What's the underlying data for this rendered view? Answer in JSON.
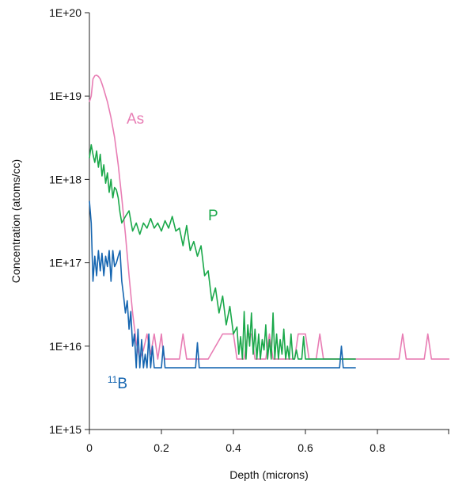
{
  "chart_data": {
    "type": "line",
    "title": "",
    "xlabel": "Depth (microns)",
    "ylabel": "Concentration (atoms/cc)",
    "xlim": [
      0,
      1.0
    ],
    "ylim": [
      1000000000000000.0,
      1e+20
    ],
    "y_scale": "log",
    "grid": false,
    "x_ticks": [
      0,
      0.2,
      0.4,
      0.6,
      0.8
    ],
    "x_tick_labels": [
      "0",
      "0.2",
      "0.4",
      "0.6",
      "0.8"
    ],
    "y_ticks": [
      1000000000000000.0,
      1e+16,
      1e+17,
      1e+18,
      1e+19,
      1e+20
    ],
    "y_tick_labels": [
      "1E+15",
      "1E+16",
      "1E+17",
      "1E+18",
      "1E+19",
      "1E+20"
    ],
    "series": [
      {
        "name": "As",
        "label": "As",
        "color": "#e87db4",
        "x": [
          0.0,
          0.005,
          0.01,
          0.015,
          0.02,
          0.025,
          0.03,
          0.035,
          0.04,
          0.05,
          0.06,
          0.07,
          0.08,
          0.09,
          0.1,
          0.11,
          0.12,
          0.13,
          0.14,
          0.15,
          0.16,
          0.17,
          0.18,
          0.19,
          0.2,
          0.205,
          0.21,
          0.22,
          0.25,
          0.26,
          0.27,
          0.29,
          0.3,
          0.31,
          0.33,
          0.37,
          0.38,
          0.4,
          0.41,
          0.43,
          0.44,
          0.45,
          0.46,
          0.49,
          0.5,
          0.51,
          0.53,
          0.57,
          0.58,
          0.6,
          0.61,
          0.62,
          0.63,
          0.64,
          0.65,
          0.7,
          0.8,
          0.85,
          0.86,
          0.87,
          0.88,
          0.9,
          0.92,
          0.93,
          0.94,
          0.95,
          1.0
        ],
        "y": [
          8.5e+18,
          1e+19,
          1.6e+19,
          1.75e+19,
          1.78e+19,
          1.72e+19,
          1.6e+19,
          1.4e+19,
          1.2e+19,
          8.5e+18,
          5.5e+18,
          3.2e+18,
          1.5e+18,
          6e+17,
          2.2e+17,
          7e+16,
          2.5e+16,
          1.1e+16,
          7000000000000000.0,
          9000000000000000.0,
          1.4e+16,
          8000000000000000.0,
          1.4e+16,
          7000000000000000.0,
          1.4e+16,
          8000000000000000.0,
          7000000000000000.0,
          7000000000000000.0,
          7000000000000000.0,
          1.4e+16,
          7000000000000000.0,
          7000000000000000.0,
          7000000000000000.0,
          7000000000000000.0,
          7000000000000000.0,
          1.4e+16,
          1.4e+16,
          1.4e+16,
          7000000000000000.0,
          7000000000000000.0,
          1.4e+16,
          1.4e+16,
          7000000000000000.0,
          7000000000000000.0,
          1.4e+16,
          7000000000000000.0,
          7000000000000000.0,
          7000000000000000.0,
          1.4e+16,
          1.4e+16,
          7000000000000000.0,
          7000000000000000.0,
          7000000000000000.0,
          1.4e+16,
          7000000000000000.0,
          7000000000000000.0,
          7000000000000000.0,
          7000000000000000.0,
          7000000000000000.0,
          1.4e+16,
          7000000000000000.0,
          7000000000000000.0,
          7000000000000000.0,
          7000000000000000.0,
          1.4e+16,
          7000000000000000.0,
          7000000000000000.0
        ]
      },
      {
        "name": "P",
        "label": "P",
        "color": "#1aa84a",
        "x": [
          0.0,
          0.005,
          0.01,
          0.015,
          0.02,
          0.025,
          0.03,
          0.035,
          0.04,
          0.045,
          0.05,
          0.055,
          0.06,
          0.065,
          0.07,
          0.075,
          0.08,
          0.085,
          0.09,
          0.1,
          0.11,
          0.12,
          0.13,
          0.14,
          0.15,
          0.16,
          0.17,
          0.18,
          0.19,
          0.2,
          0.21,
          0.22,
          0.23,
          0.24,
          0.25,
          0.26,
          0.27,
          0.28,
          0.29,
          0.3,
          0.31,
          0.32,
          0.33,
          0.34,
          0.35,
          0.36,
          0.37,
          0.38,
          0.39,
          0.4,
          0.41,
          0.415,
          0.42,
          0.425,
          0.43,
          0.435,
          0.44,
          0.445,
          0.45,
          0.455,
          0.46,
          0.465,
          0.47,
          0.475,
          0.48,
          0.485,
          0.49,
          0.495,
          0.5,
          0.505,
          0.51,
          0.515,
          0.52,
          0.525,
          0.53,
          0.535,
          0.54,
          0.545,
          0.55,
          0.555,
          0.56,
          0.565,
          0.57,
          0.575,
          0.58,
          0.585,
          0.59,
          0.595,
          0.6,
          0.61,
          0.62,
          0.63,
          0.64,
          0.66,
          0.68,
          0.7,
          0.72,
          0.74
        ],
        "y": [
          1.8e+18,
          2.6e+18,
          2e+18,
          1.6e+18,
          2.2e+18,
          1.4e+18,
          2e+18,
          1.1e+18,
          1.5e+18,
          9e+17,
          1.2e+18,
          7e+17,
          1e+18,
          6e+17,
          8e+17,
          7.5e+17,
          6e+17,
          4e+17,
          3e+17,
          3.6e+17,
          4.2e+17,
          2.4e+17,
          3e+17,
          2.2e+17,
          3e+17,
          2.6e+17,
          3.4e+17,
          2.6e+17,
          3e+17,
          2.4e+17,
          3.2e+17,
          2.6e+17,
          3.6e+17,
          2.4e+17,
          2.6e+17,
          1.6e+17,
          2.8e+17,
          1.4e+17,
          1.8e+17,
          1.2e+17,
          1.6e+17,
          7e+16,
          8e+16,
          3.5e+16,
          5e+16,
          2.5e+16,
          4e+16,
          1.8e+16,
          3e+16,
          1.4e+16,
          1.7e+16,
          8000000000000000.0,
          1.3e+16,
          7000000000000000.0,
          2.6e+16,
          7000000000000000.0,
          1.8e+16,
          1e+16,
          2.5e+16,
          8000000000000000.0,
          1.6e+16,
          7000000000000000.0,
          1.4e+16,
          7000000000000000.0,
          1.2e+16,
          9000000000000000.0,
          1.8e+16,
          7000000000000000.0,
          1.2e+16,
          7000000000000000.0,
          2.5e+16,
          7000000000000000.0,
          1.4e+16,
          7000000000000000.0,
          1.2e+16,
          8000000000000000.0,
          1.6e+16,
          7000000000000000.0,
          1e+16,
          7000000000000000.0,
          1.4e+16,
          7000000000000000.0,
          7000000000000000.0,
          9000000000000000.0,
          7000000000000000.0,
          7000000000000000.0,
          7000000000000000.0,
          1.3e+16,
          7000000000000000.0,
          7000000000000000.0,
          7000000000000000.0,
          7000000000000000.0,
          7000000000000000.0,
          7000000000000000.0,
          7000000000000000.0,
          7000000000000000.0,
          7000000000000000.0,
          7000000000000000.0
        ]
      },
      {
        "name": "11B",
        "label": "B",
        "label_superscript": "11",
        "color": "#1565b0",
        "x": [
          0.0,
          0.005,
          0.01,
          0.015,
          0.02,
          0.025,
          0.03,
          0.035,
          0.04,
          0.045,
          0.05,
          0.055,
          0.06,
          0.065,
          0.07,
          0.075,
          0.08,
          0.085,
          0.09,
          0.095,
          0.1,
          0.105,
          0.11,
          0.115,
          0.12,
          0.125,
          0.13,
          0.135,
          0.14,
          0.145,
          0.15,
          0.155,
          0.16,
          0.165,
          0.17,
          0.175,
          0.18,
          0.185,
          0.19,
          0.2,
          0.205,
          0.21,
          0.215,
          0.22,
          0.25,
          0.28,
          0.295,
          0.3,
          0.305,
          0.31,
          0.35,
          0.4,
          0.45,
          0.5,
          0.55,
          0.6,
          0.65,
          0.695,
          0.7,
          0.705,
          0.71,
          0.74
        ],
        "y": [
          5.5e+17,
          3e+17,
          6e+16,
          1.2e+17,
          7e+16,
          1.4e+17,
          8e+16,
          1.3e+17,
          7e+16,
          1.2e+17,
          9e+16,
          1.4e+17,
          6e+16,
          1.4e+17,
          9e+16,
          1e+17,
          1.2e+17,
          1.4e+17,
          6e+16,
          4e+16,
          2.5e+16,
          3.5e+16,
          1.6e+16,
          2.6e+16,
          1e+16,
          1.4e+16,
          5500000000000000.0,
          1.6e+16,
          5500000000000000.0,
          1.2e+16,
          5500000000000000.0,
          8000000000000000.0,
          5500000000000000.0,
          1.4e+16,
          5500000000000000.0,
          1e+16,
          5500000000000000.0,
          5500000000000000.0,
          5500000000000000.0,
          5500000000000000.0,
          1e+16,
          5500000000000000.0,
          5500000000000000.0,
          5500000000000000.0,
          5500000000000000.0,
          5500000000000000.0,
          5500000000000000.0,
          1.1e+16,
          5500000000000000.0,
          5500000000000000.0,
          5500000000000000.0,
          5500000000000000.0,
          5500000000000000.0,
          5500000000000000.0,
          5500000000000000.0,
          5500000000000000.0,
          5500000000000000.0,
          5500000000000000.0,
          1e+16,
          5500000000000000.0,
          5500000000000000.0,
          5500000000000000.0
        ]
      }
    ]
  }
}
